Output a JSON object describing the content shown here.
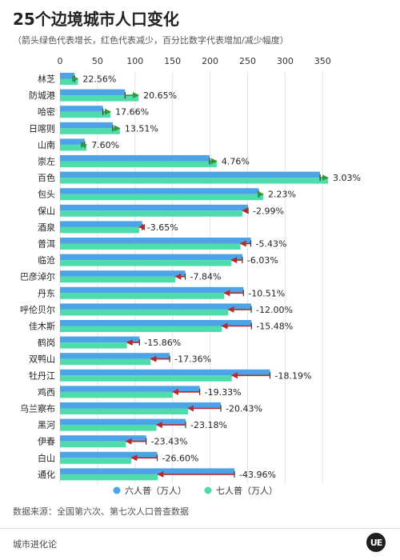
{
  "header": {
    "title": "25个边境城市人口变化",
    "subtitle": "（箭头绿色代表增长，红色代表减少，百分比数字代表增加/减少幅度）"
  },
  "footer": {
    "source": "数据来源：全国第六次、第七次人口普查数据",
    "brand": "城市进化论",
    "logo_text": "UE"
  },
  "colors": {
    "six": "#4da3e8",
    "seven": "#4fdcab",
    "increase_arrow": "#2c9a3a",
    "decrease_arrow": "#b52a2a"
  },
  "chart_data": {
    "type": "bar",
    "orientation": "horizontal",
    "xlim": [
      0,
      370
    ],
    "ticks": [
      0,
      50,
      100,
      150,
      200,
      250,
      300,
      350
    ],
    "grid": true,
    "legend_position": "bottom",
    "categories": [
      "林芝",
      "防城港",
      "哈密",
      "日喀则",
      "山南",
      "崇左",
      "百色",
      "包头",
      "保山",
      "酒泉",
      "普洱",
      "临沧",
      "巴彦淖尔",
      "丹东",
      "呼伦贝尔",
      "佳木斯",
      "鹤岗",
      "双鸭山",
      "牡丹江",
      "鸡西",
      "乌兰察布",
      "黑河",
      "伊春",
      "白山",
      "通化"
    ],
    "series": [
      {
        "name": "六人普（万人）",
        "values": [
          19.5,
          86.7,
          57.2,
          70.3,
          32.9,
          199.4,
          346.7,
          265.0,
          250.6,
          109.6,
          254.3,
          243.0,
          166.9,
          244.5,
          254.9,
          255.2,
          105.9,
          146.2,
          279.9,
          186.2,
          214.4,
          167.4,
          114.8,
          129.6,
          232.5
        ]
      },
      {
        "name": "七人普（万人）",
        "values": [
          23.9,
          104.6,
          67.3,
          79.8,
          35.4,
          208.9,
          357.2,
          270.9,
          243.1,
          105.6,
          240.5,
          228.3,
          153.8,
          218.8,
          224.3,
          215.7,
          89.1,
          120.8,
          229.0,
          150.2,
          170.6,
          128.6,
          87.9,
          95.1,
          130.3
        ]
      }
    ],
    "change_labels": [
      "22.56%",
      "20.65%",
      "17.66%",
      "13.51%",
      "7.60%",
      "4.76%",
      "3.03%",
      "2.23%",
      "-2.99%",
      "-3.65%",
      "-5.43%",
      "-6.03%",
      "-7.84%",
      "-10.51%",
      "-12.00%",
      "-15.48%",
      "-15.86%",
      "-17.36%",
      "-18.19%",
      "-19.33%",
      "-20.43%",
      "-23.18%",
      "-23.43%",
      "-26.60%",
      "-43.96%"
    ]
  }
}
